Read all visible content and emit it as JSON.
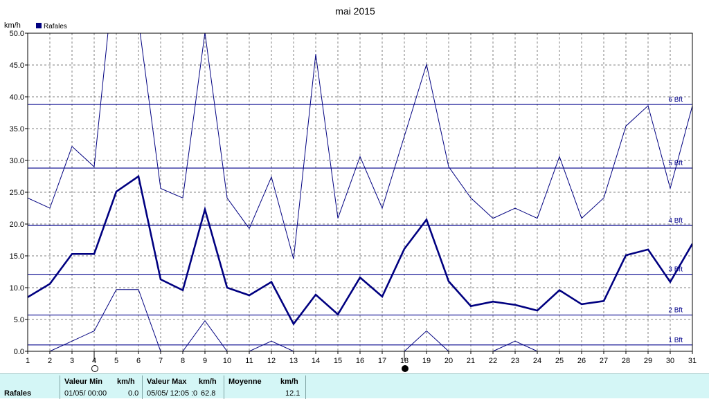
{
  "chart_data": {
    "type": "line",
    "title": "mai 2015",
    "ylabel": "km/h",
    "xlabel": "",
    "ylim": [
      0,
      50
    ],
    "y_ticks": [
      "0.0",
      "5.0",
      "10.0",
      "15.0",
      "20.0",
      "25.0",
      "30.0",
      "35.0",
      "40.0",
      "45.0",
      "50.0"
    ],
    "x": [
      1,
      2,
      3,
      4,
      5,
      6,
      7,
      8,
      9,
      10,
      11,
      12,
      13,
      14,
      15,
      16,
      17,
      18,
      19,
      20,
      21,
      22,
      23,
      24,
      25,
      26,
      27,
      28,
      29,
      30,
      31
    ],
    "grid": true,
    "legend": {
      "position": "top-left",
      "entries": [
        "Rafales"
      ]
    },
    "series": [
      {
        "name": "Rafales",
        "style": "thick",
        "values": [
          8.5,
          10.6,
          15.3,
          15.3,
          25.1,
          27.5,
          11.3,
          9.6,
          22.3,
          10.0,
          8.8,
          10.9,
          4.3,
          8.9,
          5.8,
          11.6,
          8.6,
          16.1,
          20.7,
          11.0,
          7.1,
          7.8,
          7.3,
          6.4,
          9.6,
          7.4,
          7.9,
          15.1,
          16.0,
          10.9,
          16.9
        ]
      },
      {
        "style": "thin-max",
        "values": [
          24.1,
          22.5,
          32.2,
          29.0,
          62.8,
          52.0,
          25.6,
          24.1,
          50.1,
          24.1,
          19.3,
          27.4,
          14.5,
          46.7,
          20.9,
          30.6,
          22.5,
          33.8,
          45.1,
          29.0,
          24.1,
          20.9,
          22.5,
          20.9,
          30.6,
          20.9,
          24.1,
          35.4,
          38.6,
          25.6,
          38.6
        ]
      },
      {
        "style": "thin-min",
        "values": [
          0.0,
          0.0,
          1.6,
          3.2,
          9.7,
          9.7,
          0.0,
          0.0,
          4.8,
          0.0,
          0.0,
          1.6,
          0.0,
          0.0,
          0.0,
          0.0,
          0.0,
          0.0,
          3.2,
          0.0,
          0.0,
          0.0,
          1.6,
          0.0,
          0.0,
          0.0,
          0.0,
          0.0,
          0.0,
          0.0,
          0.0
        ]
      }
    ],
    "beaufort_lines": [
      {
        "label": "1 Bft",
        "value": 1.0
      },
      {
        "label": "2 Bft",
        "value": 5.7
      },
      {
        "label": "3 Bft",
        "value": 12.1
      },
      {
        "label": "4 Bft",
        "value": 19.8
      },
      {
        "label": "5 Bft",
        "value": 28.8
      },
      {
        "label": "6 Bft",
        "value": 38.8
      }
    ],
    "moon_markers": [
      {
        "day": 4,
        "phase": "full-moon"
      },
      {
        "day": 18,
        "phase": "new-moon"
      }
    ],
    "colors": {
      "series": "#000080",
      "beaufort": "#00008b",
      "grid": "#808080",
      "footer_bg": "#d4f6f6"
    }
  },
  "footer": {
    "row_label": "Rafales",
    "min_header": "Valeur Min",
    "min_unit": "km/h",
    "min_date": "01/05/  00:00",
    "min_value": "0.0",
    "max_header": "Valeur Max",
    "max_unit": "km/h",
    "max_date": "05/05/  12:05",
    "max_value": "62.8",
    "max_overlap": ":0",
    "avg_header": "Moyenne",
    "avg_unit": "km/h",
    "avg_value": "12.1"
  }
}
